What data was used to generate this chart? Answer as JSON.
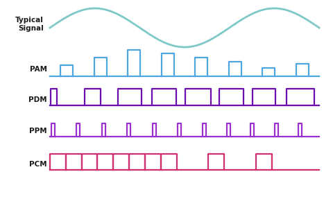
{
  "bg_color": "#ffffff",
  "typical_signal_color": "#7ec8c8",
  "pam_color": "#4da6e0",
  "pdm_color": "#6a0dad",
  "ppm_color": "#9b30d0",
  "pcm_color": "#d03070",
  "label_color": "#1a1a1a",
  "label_fontsize": 7.5,
  "typical_label": "Typical\nSignal",
  "labels": [
    "PAM",
    "PDM",
    "PPM",
    "PCM"
  ],
  "figsize": [
    4.8,
    3.0
  ],
  "dpi": 100,
  "lw": 1.6
}
